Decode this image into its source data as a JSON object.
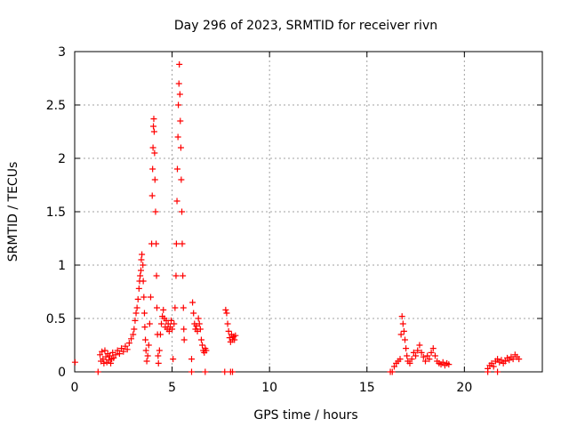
{
  "chart_data": {
    "type": "scatter",
    "title": "Day 296 of 2023, SRMTID for receiver rivn",
    "xlabel": "GPS time / hours",
    "ylabel": "SRMTID / TECUs",
    "xlim": [
      0,
      24
    ],
    "ylim": [
      0,
      3
    ],
    "xticks": [
      0,
      5,
      10,
      15,
      20
    ],
    "yticks": [
      0,
      0.5,
      1,
      1.5,
      2,
      2.5,
      3
    ],
    "xtick_labels": [
      "0",
      "5",
      "10",
      "15",
      "20"
    ],
    "ytick_labels": [
      "0",
      "0.5",
      "1",
      "1.5",
      "2",
      "2.5",
      "3"
    ],
    "grid": true,
    "marker": "+",
    "color": "#ff0000",
    "series": [
      {
        "name": "SRMTID",
        "points": [
          [
            0.02,
            0.09
          ],
          [
            1.2,
            0.0
          ],
          [
            1.3,
            0.16
          ],
          [
            1.35,
            0.1
          ],
          [
            1.4,
            0.19
          ],
          [
            1.45,
            0.12
          ],
          [
            1.5,
            0.08
          ],
          [
            1.55,
            0.2
          ],
          [
            1.6,
            0.14
          ],
          [
            1.65,
            0.09
          ],
          [
            1.7,
            0.17
          ],
          [
            1.75,
            0.11
          ],
          [
            1.8,
            0.15
          ],
          [
            1.85,
            0.08
          ],
          [
            1.9,
            0.12
          ],
          [
            1.95,
            0.18
          ],
          [
            2.0,
            0.13
          ],
          [
            2.1,
            0.16
          ],
          [
            2.2,
            0.2
          ],
          [
            2.3,
            0.17
          ],
          [
            2.4,
            0.22
          ],
          [
            2.5,
            0.19
          ],
          [
            2.6,
            0.24
          ],
          [
            2.7,
            0.21
          ],
          [
            2.8,
            0.27
          ],
          [
            2.9,
            0.31
          ],
          [
            3.0,
            0.35
          ],
          [
            3.05,
            0.4
          ],
          [
            3.1,
            0.48
          ],
          [
            3.15,
            0.55
          ],
          [
            3.2,
            0.6
          ],
          [
            3.25,
            0.68
          ],
          [
            3.3,
            0.78
          ],
          [
            3.33,
            0.85
          ],
          [
            3.36,
            0.9
          ],
          [
            3.4,
            0.95
          ],
          [
            3.42,
            1.05
          ],
          [
            3.45,
            1.1
          ],
          [
            3.5,
            1.0
          ],
          [
            3.52,
            0.85
          ],
          [
            3.55,
            0.7
          ],
          [
            3.58,
            0.55
          ],
          [
            3.6,
            0.42
          ],
          [
            3.63,
            0.3
          ],
          [
            3.66,
            0.2
          ],
          [
            3.7,
            0.1
          ],
          [
            3.75,
            0.15
          ],
          [
            3.8,
            0.25
          ],
          [
            3.85,
            0.45
          ],
          [
            3.9,
            0.7
          ],
          [
            3.95,
            1.2
          ],
          [
            3.98,
            1.65
          ],
          [
            4.0,
            1.9
          ],
          [
            4.02,
            2.1
          ],
          [
            4.04,
            2.3
          ],
          [
            4.06,
            2.37
          ],
          [
            4.08,
            2.25
          ],
          [
            4.1,
            2.05
          ],
          [
            4.12,
            1.8
          ],
          [
            4.15,
            1.5
          ],
          [
            4.18,
            1.2
          ],
          [
            4.2,
            0.9
          ],
          [
            4.22,
            0.6
          ],
          [
            4.25,
            0.35
          ],
          [
            4.28,
            0.15
          ],
          [
            4.3,
            0.08
          ],
          [
            4.35,
            0.2
          ],
          [
            4.4,
            0.35
          ],
          [
            4.45,
            0.45
          ],
          [
            4.5,
            0.52
          ],
          [
            4.55,
            0.58
          ],
          [
            4.6,
            0.5
          ],
          [
            4.65,
            0.42
          ],
          [
            4.7,
            0.48
          ],
          [
            4.75,
            0.4
          ],
          [
            4.8,
            0.45
          ],
          [
            4.85,
            0.38
          ],
          [
            4.9,
            0.42
          ],
          [
            4.95,
            0.48
          ],
          [
            5.0,
            0.4
          ],
          [
            5.05,
            0.12
          ],
          [
            5.1,
            0.45
          ],
          [
            5.15,
            0.6
          ],
          [
            5.2,
            0.9
          ],
          [
            5.22,
            1.2
          ],
          [
            5.25,
            1.6
          ],
          [
            5.27,
            1.9
          ],
          [
            5.3,
            2.2
          ],
          [
            5.32,
            2.5
          ],
          [
            5.35,
            2.7
          ],
          [
            5.37,
            2.88
          ],
          [
            5.4,
            2.6
          ],
          [
            5.42,
            2.35
          ],
          [
            5.45,
            2.1
          ],
          [
            5.47,
            1.8
          ],
          [
            5.5,
            1.5
          ],
          [
            5.52,
            1.2
          ],
          [
            5.55,
            0.9
          ],
          [
            5.58,
            0.6
          ],
          [
            5.6,
            0.4
          ],
          [
            5.62,
            0.3
          ],
          [
            6.0,
            0.12
          ],
          [
            6.05,
            0.65
          ],
          [
            6.1,
            0.55
          ],
          [
            6.15,
            0.45
          ],
          [
            6.2,
            0.4
          ],
          [
            6.25,
            0.43
          ],
          [
            6.3,
            0.38
          ],
          [
            6.35,
            0.5
          ],
          [
            6.4,
            0.45
          ],
          [
            6.45,
            0.4
          ],
          [
            6.5,
            0.3
          ],
          [
            6.55,
            0.25
          ],
          [
            6.6,
            0.2
          ],
          [
            6.65,
            0.18
          ],
          [
            6.7,
            0.22
          ],
          [
            6.75,
            0.2
          ],
          [
            6.0,
            0.0
          ],
          [
            6.7,
            0.0
          ],
          [
            7.7,
            0.0
          ],
          [
            7.75,
            0.58
          ],
          [
            7.8,
            0.55
          ],
          [
            7.85,
            0.45
          ],
          [
            7.9,
            0.38
          ],
          [
            7.95,
            0.32
          ],
          [
            8.0,
            0.28
          ],
          [
            8.05,
            0.35
          ],
          [
            8.1,
            0.3
          ],
          [
            8.15,
            0.33
          ],
          [
            8.2,
            0.3
          ],
          [
            8.25,
            0.34
          ],
          [
            8.0,
            0.0
          ],
          [
            8.1,
            0.0
          ],
          [
            16.2,
            0.0
          ],
          [
            16.3,
            0.0
          ],
          [
            16.4,
            0.05
          ],
          [
            16.5,
            0.08
          ],
          [
            16.6,
            0.1
          ],
          [
            16.7,
            0.12
          ],
          [
            16.75,
            0.35
          ],
          [
            16.8,
            0.52
          ],
          [
            16.85,
            0.45
          ],
          [
            16.9,
            0.38
          ],
          [
            16.95,
            0.3
          ],
          [
            17.0,
            0.22
          ],
          [
            17.05,
            0.15
          ],
          [
            17.1,
            0.1
          ],
          [
            17.2,
            0.08
          ],
          [
            17.3,
            0.12
          ],
          [
            17.4,
            0.18
          ],
          [
            17.5,
            0.15
          ],
          [
            17.6,
            0.2
          ],
          [
            17.7,
            0.25
          ],
          [
            17.8,
            0.18
          ],
          [
            17.9,
            0.14
          ],
          [
            18.0,
            0.1
          ],
          [
            18.1,
            0.15
          ],
          [
            18.2,
            0.12
          ],
          [
            18.3,
            0.18
          ],
          [
            18.4,
            0.22
          ],
          [
            18.5,
            0.15
          ],
          [
            18.6,
            0.1
          ],
          [
            18.7,
            0.08
          ],
          [
            18.8,
            0.07
          ],
          [
            18.9,
            0.09
          ],
          [
            19.0,
            0.06
          ],
          [
            19.1,
            0.08
          ],
          [
            19.2,
            0.07
          ],
          [
            21.2,
            0.0
          ],
          [
            21.7,
            0.0
          ],
          [
            21.2,
            0.03
          ],
          [
            21.3,
            0.06
          ],
          [
            21.4,
            0.08
          ],
          [
            21.5,
            0.05
          ],
          [
            21.6,
            0.1
          ],
          [
            21.7,
            0.12
          ],
          [
            21.8,
            0.09
          ],
          [
            21.9,
            0.11
          ],
          [
            22.0,
            0.08
          ],
          [
            22.1,
            0.1
          ],
          [
            22.2,
            0.13
          ],
          [
            22.3,
            0.11
          ],
          [
            22.4,
            0.14
          ],
          [
            22.5,
            0.12
          ],
          [
            22.6,
            0.16
          ],
          [
            22.7,
            0.14
          ],
          [
            22.8,
            0.12
          ]
        ]
      }
    ]
  }
}
